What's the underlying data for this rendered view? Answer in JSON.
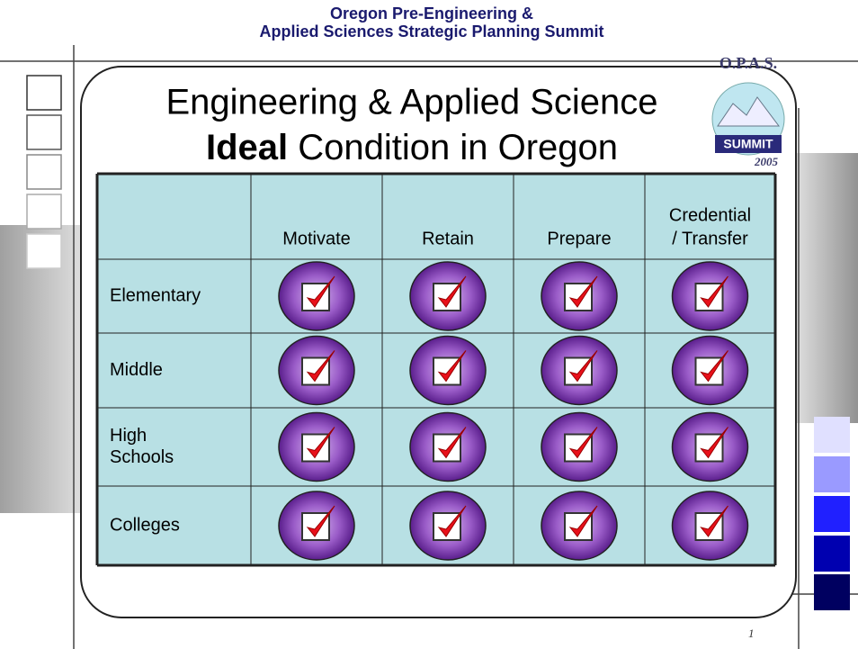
{
  "header": {
    "lines": [
      "Oregon Pre-Engineering &",
      "Applied Sciences Strategic Planning Summit"
    ]
  },
  "title": {
    "line1": "Engineering & Applied Science",
    "line2_bold": "Ideal",
    "line2_rest": " Condition in Oregon"
  },
  "logo": {
    "top": "O.P.A.S.",
    "band": "SUMMIT",
    "year": "2005"
  },
  "table": {
    "columns": [
      [
        "Motivate"
      ],
      [
        "Retain"
      ],
      [
        "Prepare"
      ],
      [
        "Credential",
        "/ Transfer"
      ]
    ],
    "rows": [
      [
        "Elementary"
      ],
      [
        "Middle"
      ],
      [
        "High",
        "Schools"
      ],
      [
        "Colleges"
      ]
    ]
  },
  "page_number": "1"
}
